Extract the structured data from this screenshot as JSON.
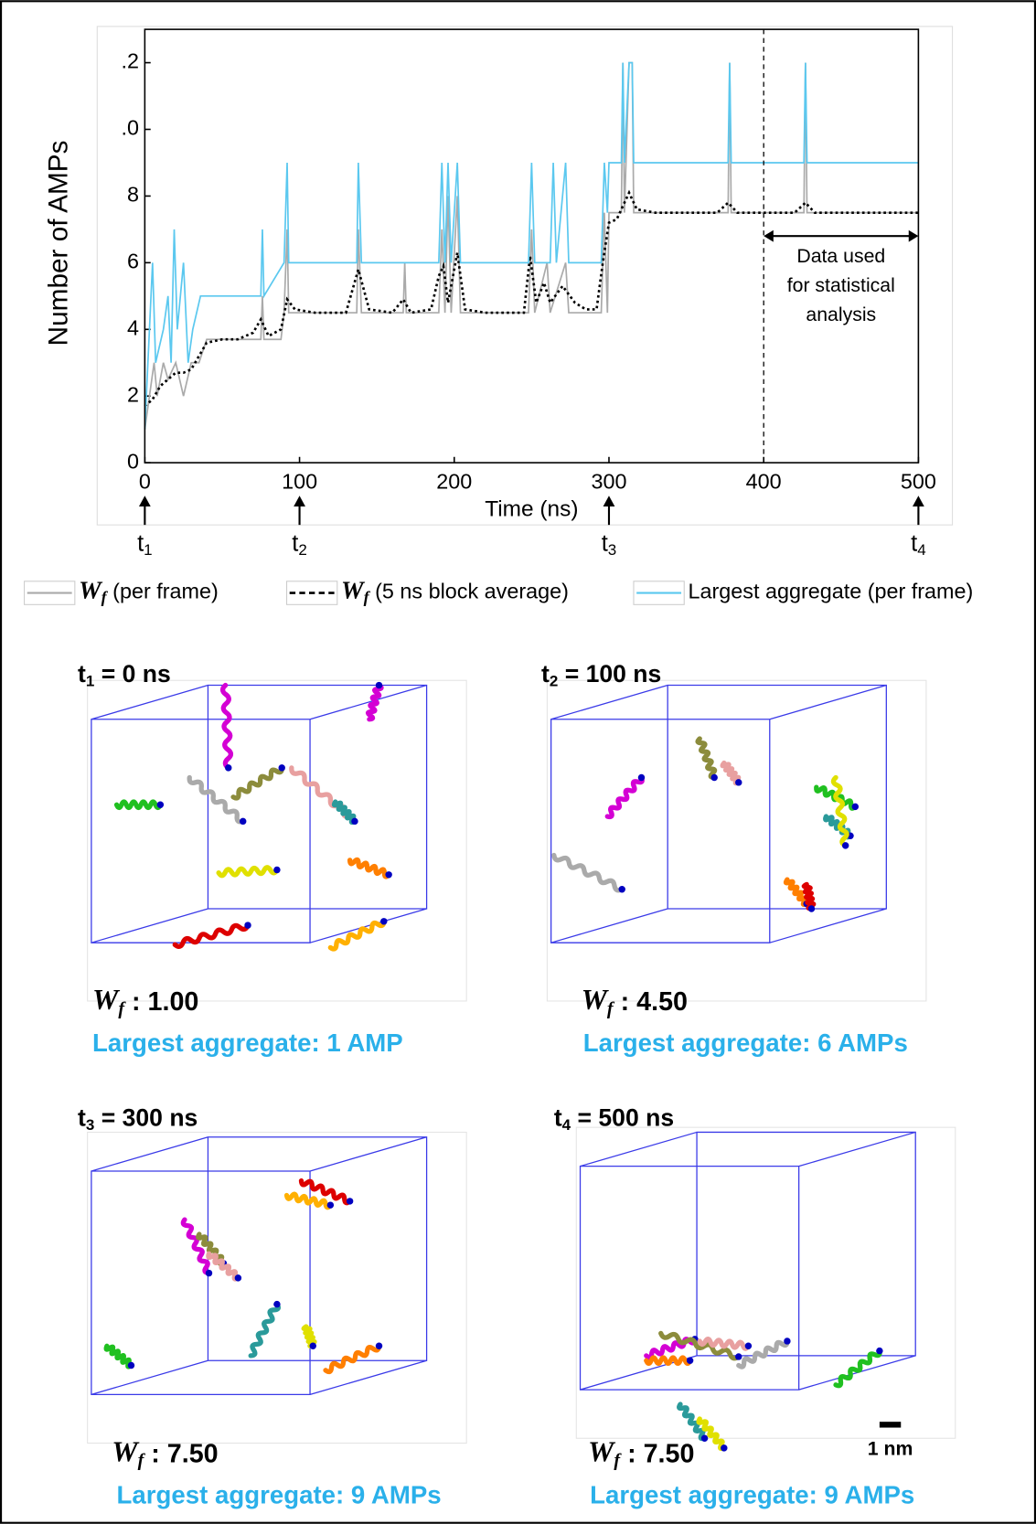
{
  "chart_data": {
    "type": "line",
    "y_label": "Number of AMPs",
    "x_label": "Time (ns)",
    "xlim": [
      0,
      500
    ],
    "xticks": [
      0,
      100,
      200,
      300,
      400,
      500
    ],
    "ylim": [
      0,
      13
    ],
    "yticks": [
      0,
      2,
      4,
      6,
      8,
      {
        "value": 10,
        "label": ".0"
      },
      {
        "value": 12,
        "label": ".2"
      }
    ],
    "vline": 400,
    "range_arrow": [
      400,
      500
    ],
    "range_arrow_y": 6.8,
    "annotation": [
      "Data used",
      "for statistical",
      "analysis"
    ],
    "time_markers": [
      {
        "x": 0,
        "label": "t",
        "sub": "1"
      },
      {
        "x": 100,
        "label": "t",
        "sub": "2"
      },
      {
        "x": 300,
        "label": "t",
        "sub": "3"
      },
      {
        "x": 500,
        "label": "t",
        "sub": "4"
      }
    ],
    "series": [
      {
        "name": "W",
        "name_sub": "f",
        "name_rest": " (per frame)",
        "color": "#aaaaaa",
        "style": "solid",
        "x": [
          0,
          3,
          6,
          8,
          12,
          15,
          20,
          25,
          30,
          35,
          40,
          75,
          76,
          77,
          88,
          90,
          92,
          93,
          137,
          138,
          140,
          167,
          168,
          169,
          190,
          192,
          194,
          196,
          198,
          202,
          204,
          248,
          250,
          252,
          260,
          262,
          272,
          274,
          295,
          297,
          299,
          300,
          308,
          309,
          310,
          313,
          315,
          316,
          377,
          378,
          379,
          426,
          427,
          428,
          500
        ],
        "values": [
          1,
          2,
          3,
          2,
          3,
          2.5,
          3,
          2,
          3,
          3,
          3.7,
          3.7,
          5,
          3.7,
          3.7,
          4.5,
          7,
          4.5,
          4.5,
          7,
          4.5,
          4.5,
          6,
          4.5,
          4.5,
          7,
          4.5,
          8,
          4.5,
          8,
          4.5,
          4.5,
          7,
          4.5,
          6,
          4.5,
          6,
          4.5,
          4.5,
          7.5,
          4.5,
          7.5,
          7.5,
          12,
          7.5,
          12,
          12,
          7.5,
          7.5,
          12,
          7.5,
          7.5,
          12,
          7.5,
          7.5
        ]
      },
      {
        "name": "W",
        "name_sub": "f",
        "name_rest": " (5 ns block average)",
        "color": "#000000",
        "style": "dotted",
        "x": [
          0,
          5,
          10,
          15,
          20,
          25,
          30,
          35,
          40,
          50,
          60,
          70,
          75,
          80,
          88,
          92,
          97,
          110,
          130,
          138,
          145,
          160,
          167,
          172,
          185,
          190,
          193,
          196,
          202,
          207,
          220,
          245,
          249,
          253,
          258,
          262,
          270,
          278,
          285,
          292,
          296,
          300,
          305,
          310,
          313,
          318,
          330,
          370,
          377,
          383,
          420,
          427,
          433,
          500
        ],
        "values": [
          1.7,
          1.9,
          2.3,
          2.5,
          2.7,
          2.7,
          2.8,
          3.2,
          3.6,
          3.7,
          3.7,
          3.9,
          4.3,
          3.8,
          4,
          4.9,
          4.6,
          4.5,
          4.5,
          5.8,
          4.6,
          4.5,
          4.9,
          4.5,
          4.6,
          5.6,
          5.9,
          4.8,
          6.3,
          4.6,
          4.5,
          4.5,
          6.2,
          4.8,
          5.4,
          4.8,
          5.3,
          4.8,
          4.6,
          4.6,
          6,
          7.2,
          7.3,
          7.8,
          8.1,
          7.6,
          7.5,
          7.5,
          7.8,
          7.5,
          7.5,
          7.8,
          7.5,
          7.5
        ]
      },
      {
        "name": "Largest aggregate (per frame)",
        "color": "#5bc8ef",
        "style": "solid",
        "x": [
          0,
          3,
          5,
          7,
          12,
          15,
          17,
          19,
          21,
          25,
          28,
          31,
          36,
          75,
          76,
          77,
          90,
          92,
          93,
          137,
          138,
          140,
          190,
          192,
          194,
          196,
          198,
          202,
          204,
          248,
          250,
          252,
          262,
          264,
          266,
          272,
          274,
          295,
          296,
          297,
          299,
          300,
          308,
          309,
          310,
          313,
          315,
          316,
          377,
          378,
          379,
          426,
          427,
          428,
          500
        ],
        "values": [
          1,
          4,
          6,
          3,
          4,
          5,
          3,
          7,
          4,
          6,
          3,
          4,
          5,
          5,
          7,
          5,
          6,
          9,
          6,
          6,
          9,
          6,
          6,
          9,
          6,
          9,
          6,
          9,
          6,
          6,
          9,
          6,
          6,
          9,
          6,
          9,
          6,
          6,
          7.5,
          9,
          7.5,
          9,
          9,
          12,
          9,
          12,
          12,
          9,
          9,
          12,
          9,
          9,
          12,
          9,
          9
        ]
      }
    ]
  },
  "panels": [
    {
      "t": "t",
      "sub": "1",
      "rest": " = 0 ns",
      "wf": "W",
      "wf_sub": "f",
      "wf_value": " : 1.00",
      "aggregate": "Largest aggregate: 1 AMP"
    },
    {
      "t": "t",
      "sub": "2",
      "rest": " = 100 ns",
      "wf": "W",
      "wf_sub": "f",
      "wf_value": " : 4.50",
      "aggregate": "Largest aggregate: 6 AMPs"
    },
    {
      "t": "t",
      "sub": "3",
      "rest": " = 300 ns",
      "wf": "W",
      "wf_sub": "f",
      "wf_value": " : 7.50",
      "aggregate": "Largest aggregate: 9 AMPs"
    },
    {
      "t": "t",
      "sub": "4",
      "rest": " = 500 ns",
      "wf": "W",
      "wf_sub": "f",
      "wf_value": " : 7.50",
      "aggregate": "Largest aggregate: 9 AMPs"
    }
  ],
  "scale_bar": "1 nm"
}
